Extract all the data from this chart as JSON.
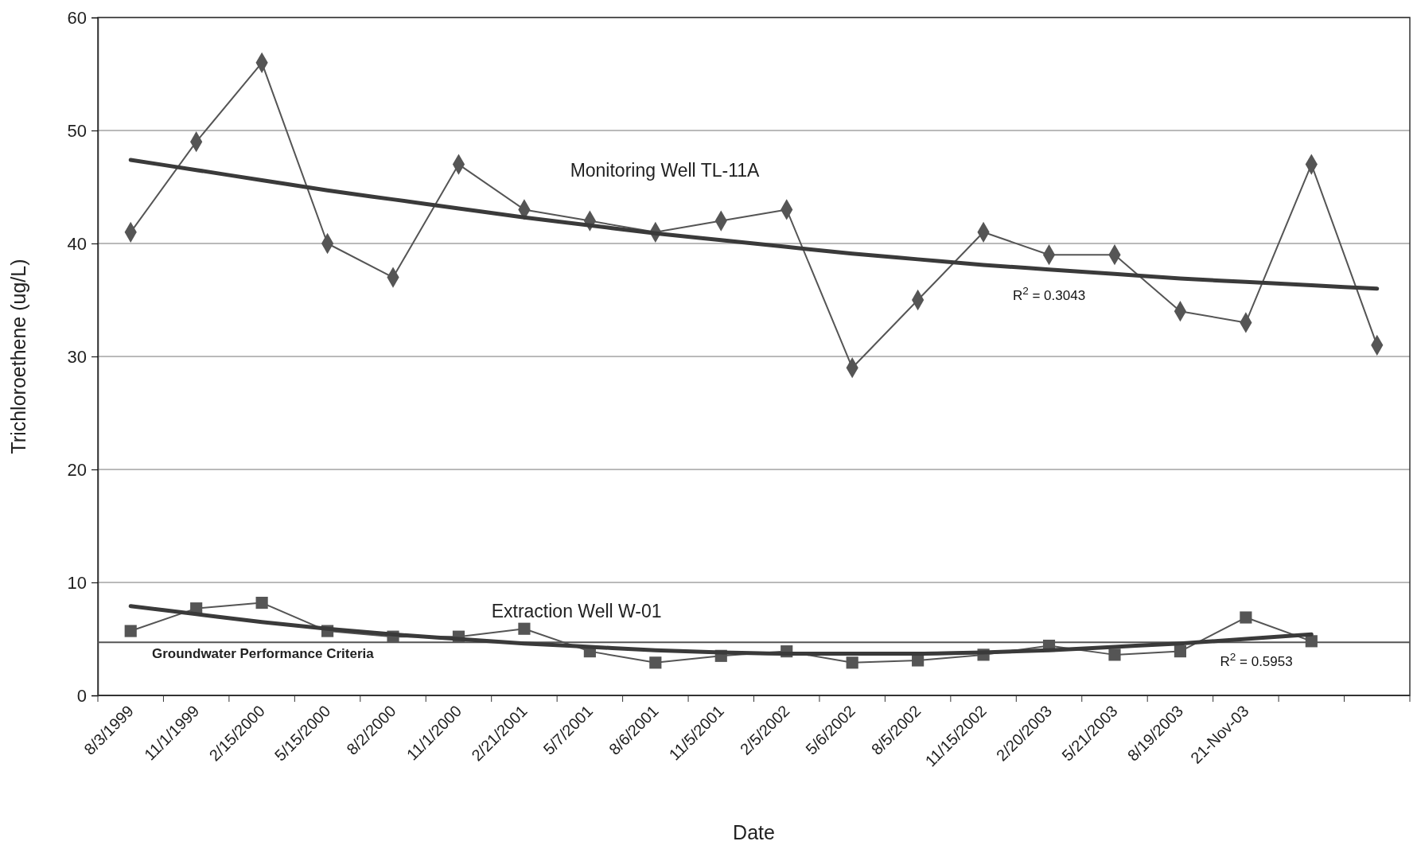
{
  "chart_data": {
    "type": "line",
    "xlabel": "Date",
    "ylabel": "Trichloroethene (ug/L)",
    "categories": [
      "8/3/1999",
      "11/1/1999",
      "2/15/2000",
      "5/15/2000",
      "8/2/2000",
      "11/1/2000",
      "2/21/2001",
      "5/7/2001",
      "8/6/2001",
      "11/5/2001",
      "2/5/2002",
      "5/6/2002",
      "8/5/2002",
      "11/15/2002",
      "2/20/2003",
      "5/21/2003",
      "8/19/2003",
      "21-Nov-03",
      null,
      null
    ],
    "series": [
      {
        "name": "Monitoring Well TL-11A",
        "color": "#555555",
        "marker": "diamond",
        "values": [
          41,
          49,
          56,
          40,
          37,
          47,
          43,
          42,
          41,
          42,
          43,
          29,
          35,
          41,
          39,
          39,
          34,
          33,
          47,
          31
        ]
      },
      {
        "name": "Extraction Well W-01",
        "color": "#555555",
        "marker": "square",
        "values": [
          5.7,
          7.7,
          8.2,
          5.7,
          5.2,
          5.2,
          5.9,
          3.9,
          2.9,
          3.5,
          3.9,
          2.9,
          3.1,
          3.6,
          4.4,
          3.6,
          3.9,
          6.9,
          4.8,
          null
        ]
      },
      {
        "type": "line",
        "color": "#3a3a3a",
        "marker": "none",
        "values": [
          47.4,
          46.5,
          45.6,
          44.7,
          43.9,
          43.1,
          42.3,
          41.6,
          40.9,
          40.3,
          39.7,
          39.1,
          38.6,
          38.1,
          37.7,
          37.3,
          36.9,
          36.6,
          36.3,
          36.0
        ]
      },
      {
        "type": "line",
        "color": "#3a3a3a",
        "marker": "none",
        "values": [
          7.9,
          7.2,
          6.5,
          5.9,
          5.4,
          5.0,
          4.6,
          4.3,
          4.0,
          3.8,
          3.7,
          3.7,
          3.7,
          3.8,
          4.0,
          4.3,
          4.6,
          5.0,
          5.4,
          null
        ]
      }
    ],
    "ylim": [
      0,
      60
    ],
    "yticks": [
      0,
      10,
      20,
      30,
      40,
      50,
      60
    ],
    "grid": "y",
    "ref_lines": [
      {
        "axis": "y",
        "value": 4.7,
        "label": "Groundwater Performance Criteria",
        "color": "#555555"
      }
    ],
    "annotations": [
      "R$^{2}$ = 0.3043",
      "R$^{2}$ = 0.5953"
    ]
  }
}
